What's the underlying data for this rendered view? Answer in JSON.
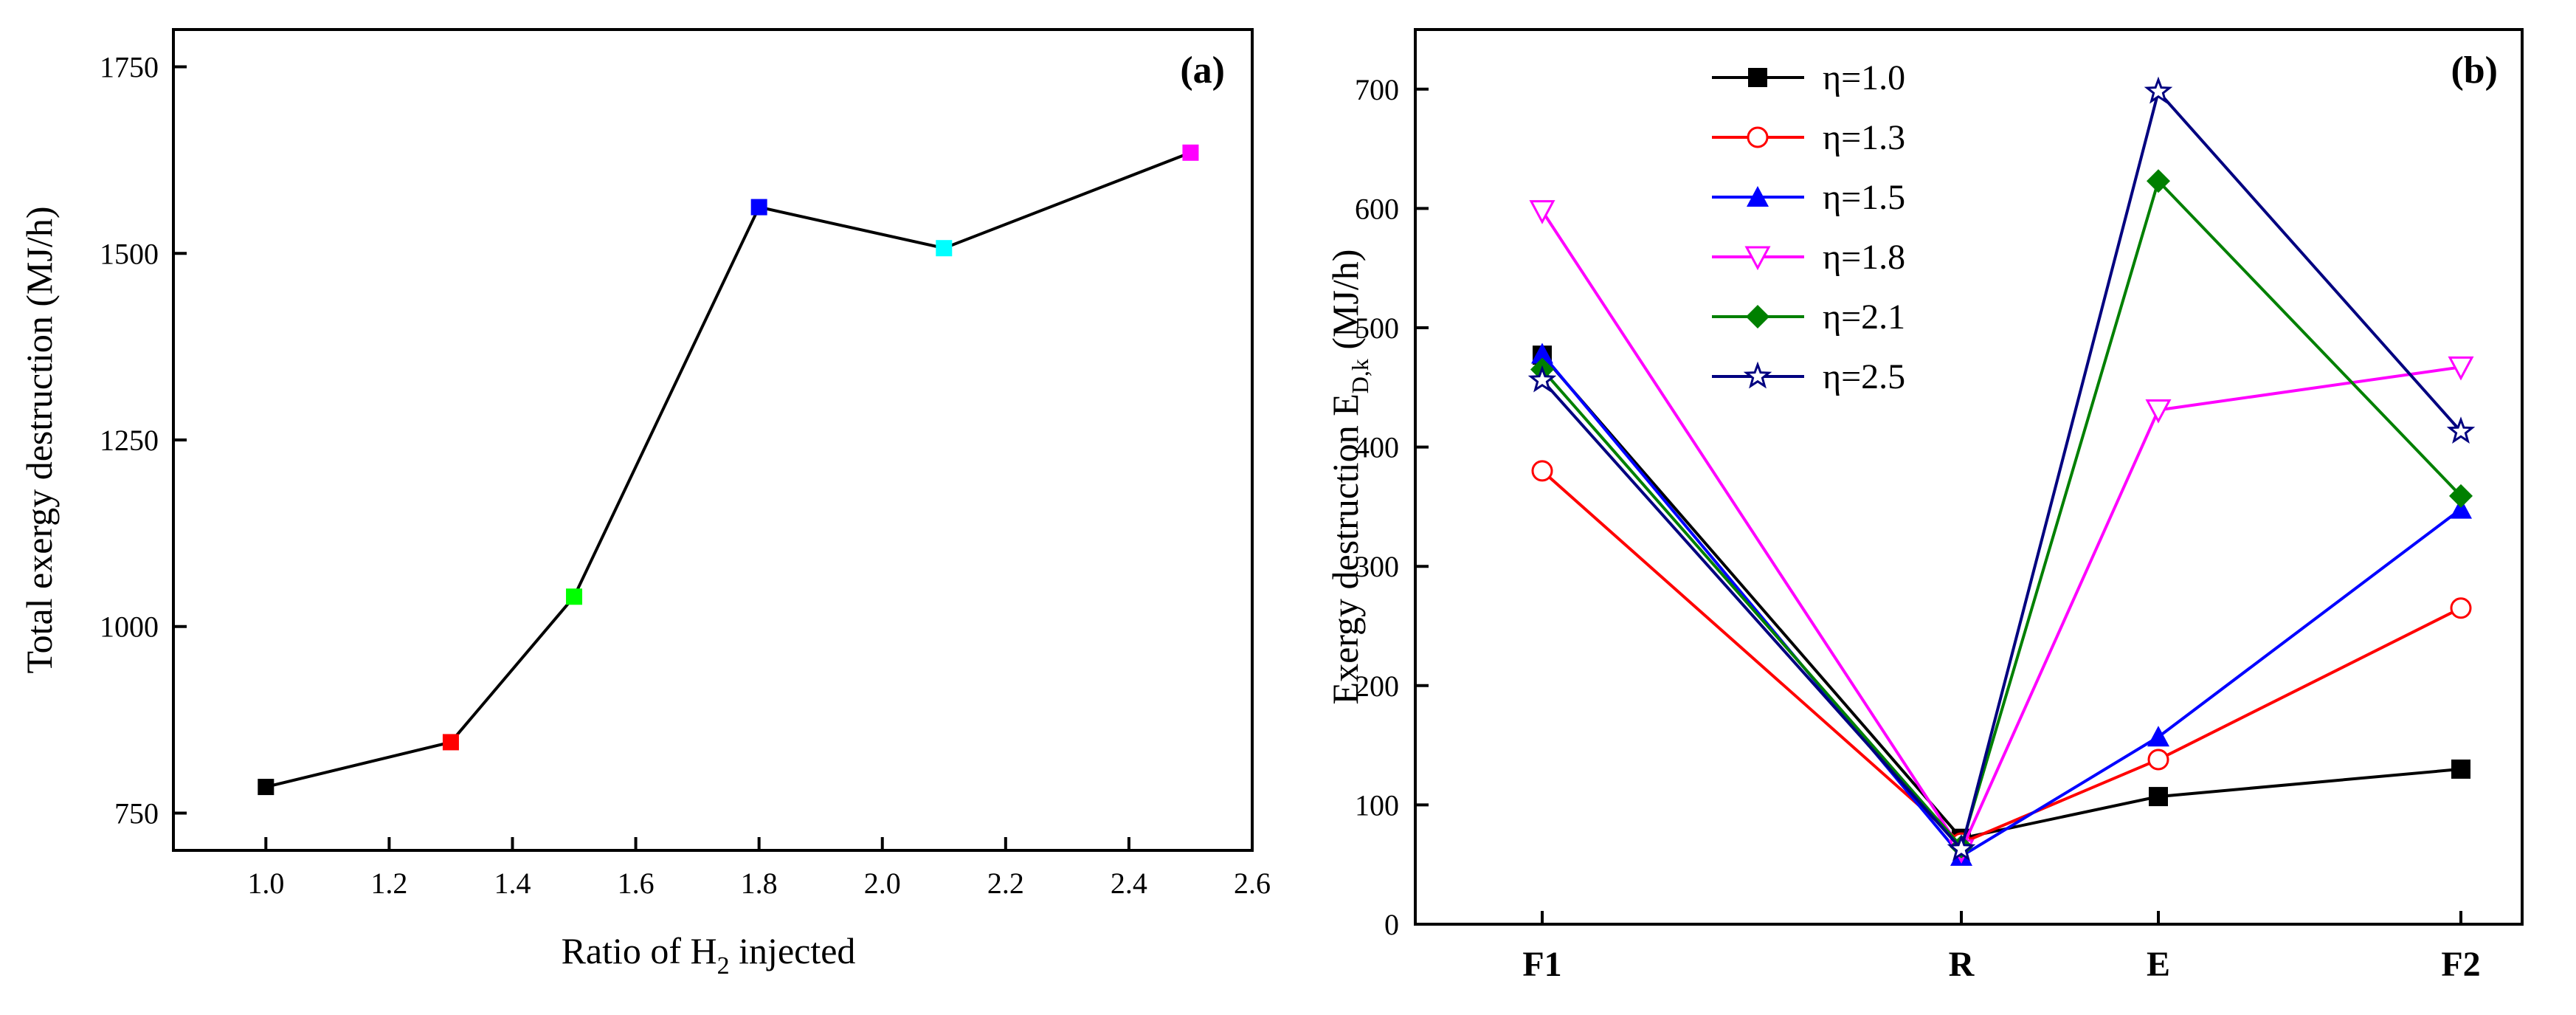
{
  "chart_data": [
    {
      "type": "line",
      "panel_label": "(a)",
      "xlabel_prefix": "Ratio of H",
      "xlabel_sub": "2",
      "xlabel_suffix": " injected",
      "ylabel": "Total exergy destruction (MJ/h)",
      "xlim": [
        0.85,
        2.6
      ],
      "ylim": [
        700,
        1800
      ],
      "xticks": [
        "1.0",
        "1.2",
        "1.4",
        "1.6",
        "1.8",
        "2.0",
        "2.2",
        "2.4",
        "2.6"
      ],
      "yticks": [
        "750",
        "1000",
        "1250",
        "1500",
        "1750"
      ],
      "x": [
        1.0,
        1.3,
        1.5,
        1.8,
        2.1,
        2.5
      ],
      "y": [
        785,
        845,
        1040,
        1562,
        1507,
        1635
      ],
      "point_colors": [
        "#000000",
        "#ff0000",
        "#00ff00",
        "#0000ff",
        "#00ffff",
        "#ff00ff"
      ],
      "line_color": "#000000"
    },
    {
      "type": "line",
      "panel_label": "(b)",
      "ylabel_prefix": "Exergy destruction E",
      "ylabel_sub": "D,k",
      "ylabel_suffix": " (MJ/h)",
      "categories": [
        "F1",
        "R",
        "E",
        "F2"
      ],
      "ylim": [
        0,
        750
      ],
      "yticks": [
        "0",
        "100",
        "200",
        "300",
        "400",
        "500",
        "600",
        "700"
      ],
      "legend_position": "top-left",
      "series": [
        {
          "name": "η=1.0",
          "color": "#000000",
          "marker": "square-filled",
          "values": [
            477,
            72,
            107,
            130
          ]
        },
        {
          "name": "η=1.3",
          "color": "#ff0000",
          "marker": "circle-open",
          "values": [
            380,
            68,
            138,
            265
          ]
        },
        {
          "name": "η=1.5",
          "color": "#0000ff",
          "marker": "triangle-up-filled",
          "values": [
            478,
            57,
            157,
            348
          ]
        },
        {
          "name": "η=1.8",
          "color": "#ff00ff",
          "marker": "triangle-down-open",
          "values": [
            598,
            62,
            431,
            467
          ]
        },
        {
          "name": "η=2.1",
          "color": "#008000",
          "marker": "diamond-filled",
          "values": [
            465,
            65,
            623,
            359
          ]
        },
        {
          "name": "η=2.5",
          "color": "#000080",
          "marker": "star-open",
          "values": [
            456,
            63,
            698,
            413
          ]
        }
      ]
    }
  ]
}
